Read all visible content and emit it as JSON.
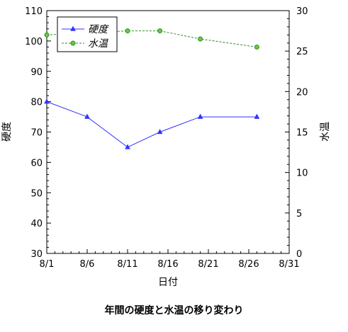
{
  "chart_data": {
    "type": "line",
    "caption": "年間の硬度と水温の移り変わり",
    "xlabel": "日付",
    "ylabel_left": "硬度",
    "ylabel_right": "水温",
    "x_ticks": [
      "8/1",
      "8/6",
      "8/11",
      "8/16",
      "8/21",
      "8/26",
      "8/31"
    ],
    "xlim": [
      "8/1",
      "8/31"
    ],
    "ylim_left": [
      30,
      110
    ],
    "ylim_right": [
      0,
      30
    ],
    "y_ticks_left": [
      "30",
      "40",
      "50",
      "60",
      "70",
      "80",
      "90",
      "100",
      "110"
    ],
    "y_ticks_right": [
      "0",
      "5",
      "10",
      "15",
      "20",
      "25",
      "30"
    ],
    "legend_position": "top-left",
    "grid": false,
    "series": [
      {
        "name": "硬度",
        "axis": "left",
        "color": "#3333ff",
        "marker": "triangle",
        "line_style": "solid",
        "x": [
          "8/1",
          "8/6",
          "8/11",
          "8/15",
          "8/20",
          "8/27"
        ],
        "values": [
          80,
          75,
          65,
          70,
          75,
          75
        ]
      },
      {
        "name": "水温",
        "axis": "right",
        "color": "#2e8b2e",
        "marker": "circle",
        "line_style": "dashed",
        "x": [
          "8/1",
          "8/11",
          "8/15",
          "8/20",
          "8/27"
        ],
        "values": [
          27,
          27.5,
          27.5,
          26.5,
          25.5
        ]
      }
    ]
  }
}
